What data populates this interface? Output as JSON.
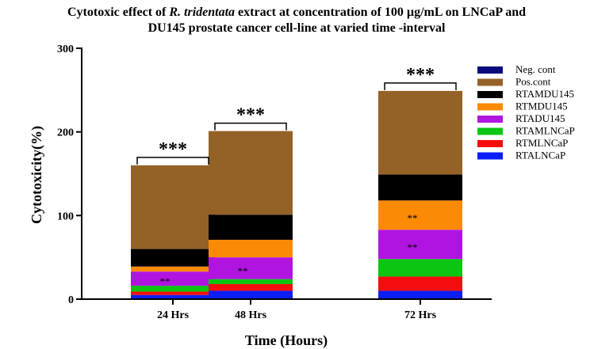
{
  "chart_data": {
    "type": "bar",
    "stacked": true,
    "title": {
      "line1_a": "Cytotoxic effect of ",
      "line1_italic": "R. tridentata",
      "line1_b": " extract at concentration of 100 µg/mL on LNCaP and",
      "line2": "DU145 prostate cancer cell-line  at  varied time -interval"
    },
    "xlabel": "Time (Hours)",
    "ylabel": "Cytotoxicity(%)",
    "ylim": [
      0,
      300
    ],
    "yticks": [
      0,
      100,
      200,
      300
    ],
    "grid": false,
    "legend_position": "top-right",
    "categories": [
      "24 Hrs",
      "48 Hrs",
      "72 Hrs"
    ],
    "series": [
      {
        "name": "RTALNCaP",
        "color": "#0a1ef5",
        "values": [
          5,
          10,
          10
        ]
      },
      {
        "name": "RTMLNCaP",
        "color": "#f50d0d",
        "values": [
          4,
          8,
          17
        ]
      },
      {
        "name": "RTAMLNCaP",
        "color": "#0cc512",
        "values": [
          7,
          6,
          21
        ]
      },
      {
        "name": "RTADU145",
        "color": "#b015e0",
        "values": [
          17,
          26,
          35
        ]
      },
      {
        "name": "RTMDU145",
        "color": "#fc8a06",
        "values": [
          6,
          21,
          35
        ]
      },
      {
        "name": "RTAMDU145",
        "color": "#000000",
        "values": [
          21,
          30,
          31
        ]
      },
      {
        "name": "Pos.cont",
        "color": "#946127",
        "values": [
          100,
          100,
          100
        ]
      },
      {
        "name": "Neg. cont",
        "color": "#0b0b7e",
        "values": [
          0,
          0,
          0
        ]
      }
    ],
    "legend_order": [
      "Neg. cont",
      "Pos.cont",
      "RTAMDU145",
      "RTMDU145",
      "RTADU145",
      "RTAMLNCaP",
      "RTMLNCaP",
      "RTALNCaP"
    ],
    "significance": [
      "***",
      "***",
      "***"
    ],
    "annotations": [
      {
        "category": "24 Hrs",
        "series": "RTADU145",
        "text": "**"
      },
      {
        "category": "48 Hrs",
        "series": "RTADU145",
        "text": "**"
      },
      {
        "category": "72 Hrs",
        "series": "RTADU145",
        "text": "**"
      },
      {
        "category": "72 Hrs",
        "series": "RTMDU145",
        "text": "**"
      }
    ]
  }
}
